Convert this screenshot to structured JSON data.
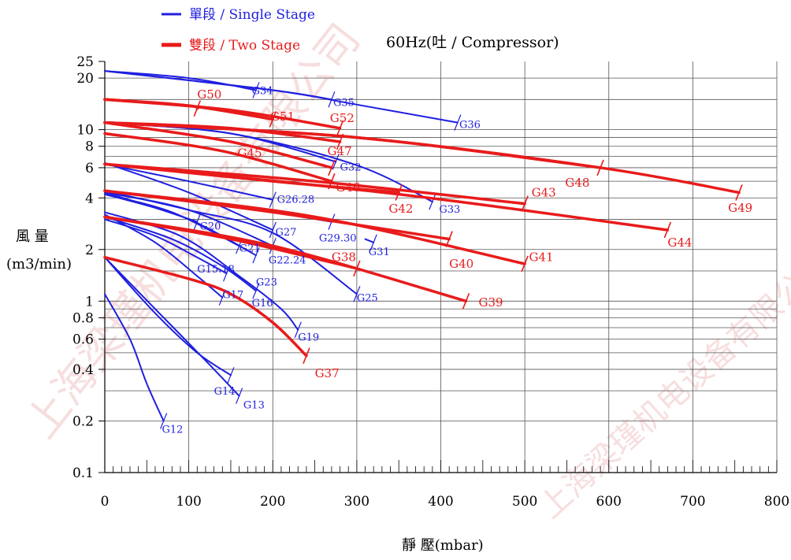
{
  "chart_data": {
    "type": "line",
    "title": "60Hz(吐 / Compressor)",
    "xlabel": "靜 壓(mbar)",
    "ylabel": "風 量\n(m3/min)",
    "y_scale": "log",
    "xlim": [
      0,
      800
    ],
    "ylim": [
      0.1,
      25
    ],
    "x_ticks": [
      0,
      100,
      200,
      300,
      400,
      500,
      600,
      700,
      800
    ],
    "y_ticks": [
      25,
      20,
      10,
      8,
      6,
      4,
      2,
      1,
      0.8,
      0.6,
      0.4,
      0.2,
      0.1
    ],
    "legend": [
      {
        "label": "單段 / Single Stage",
        "color": "#1f1fe0"
      },
      {
        "label": "雙段 / Two Stage",
        "color": "#e81b1b"
      }
    ],
    "legend_position": "top-left",
    "series": [
      {
        "name": "G12",
        "stage": "single",
        "points": [
          [
            0,
            1.1
          ],
          [
            30,
            0.6
          ],
          [
            50,
            0.33
          ],
          [
            70,
            0.2
          ]
        ]
      },
      {
        "name": "G13",
        "stage": "single",
        "points": [
          [
            0,
            1.8
          ],
          [
            60,
            0.9
          ],
          [
            120,
            0.45
          ],
          [
            160,
            0.28
          ]
        ]
      },
      {
        "name": "G14",
        "stage": "single",
        "points": [
          [
            0,
            1.8
          ],
          [
            60,
            0.85
          ],
          [
            110,
            0.5
          ],
          [
            150,
            0.37
          ]
        ]
      },
      {
        "name": "G15.18",
        "stage": "single",
        "points": [
          [
            0,
            3.0
          ],
          [
            60,
            2.4
          ],
          [
            110,
            1.8
          ],
          [
            145,
            1.45
          ]
        ]
      },
      {
        "name": "G16",
        "stage": "single",
        "points": [
          [
            0,
            3.1
          ],
          [
            80,
            2.3
          ],
          [
            140,
            1.6
          ],
          [
            180,
            1.15
          ]
        ]
      },
      {
        "name": "G17",
        "stage": "single",
        "points": [
          [
            0,
            3.2
          ],
          [
            60,
            2.2
          ],
          [
            110,
            1.4
          ],
          [
            140,
            1.05
          ]
        ]
      },
      {
        "name": "G19",
        "stage": "single",
        "points": [
          [
            0,
            3.3
          ],
          [
            90,
            2.4
          ],
          [
            160,
            1.4
          ],
          [
            210,
            0.9
          ],
          [
            230,
            0.68
          ]
        ]
      },
      {
        "name": "G20",
        "stage": "single",
        "points": [
          [
            0,
            4.2
          ],
          [
            60,
            3.5
          ],
          [
            110,
            2.9
          ]
        ]
      },
      {
        "name": "G21",
        "stage": "single",
        "points": [
          [
            0,
            4.2
          ],
          [
            80,
            3.3
          ],
          [
            160,
            2.1
          ]
        ]
      },
      {
        "name": "G22.24",
        "stage": "single",
        "points": [
          [
            0,
            4.3
          ],
          [
            100,
            3.4
          ],
          [
            200,
            2.1
          ]
        ]
      },
      {
        "name": "G23",
        "stage": "single",
        "points": [
          [
            0,
            4.3
          ],
          [
            100,
            3.0
          ],
          [
            180,
            1.85
          ]
        ]
      },
      {
        "name": "G25",
        "stage": "single",
        "points": [
          [
            0,
            4.4
          ],
          [
            100,
            3.4
          ],
          [
            200,
            2.5
          ],
          [
            300,
            1.1
          ]
        ]
      },
      {
        "name": "G26.28",
        "stage": "single",
        "points": [
          [
            0,
            6.3
          ],
          [
            100,
            5.0
          ],
          [
            200,
            3.9
          ]
        ]
      },
      {
        "name": "G27",
        "stage": "single",
        "points": [
          [
            0,
            6.4
          ],
          [
            100,
            4.3
          ],
          [
            200,
            2.6
          ]
        ]
      },
      {
        "name": "G29.30",
        "stage": "single",
        "points": [
          [
            0,
            4.4
          ],
          [
            150,
            3.6
          ],
          [
            270,
            2.9
          ]
        ]
      },
      {
        "name": "G31",
        "stage": "single",
        "points": [
          [
            310,
            2.3
          ],
          [
            320,
            2.2
          ]
        ]
      },
      {
        "name": "G32",
        "stage": "single",
        "points": [
          [
            0,
            11.0
          ],
          [
            150,
            9.5
          ],
          [
            275,
            6.5
          ]
        ]
      },
      {
        "name": "G33",
        "stage": "single",
        "points": [
          [
            0,
            11.0
          ],
          [
            150,
            9.5
          ],
          [
            300,
            6.2
          ],
          [
            390,
            3.8
          ]
        ]
      },
      {
        "name": "G34",
        "stage": "single",
        "points": [
          [
            0,
            22.0
          ],
          [
            100,
            20.0
          ],
          [
            180,
            17.0
          ]
        ]
      },
      {
        "name": "G35",
        "stage": "single",
        "points": [
          [
            0,
            22.0
          ],
          [
            200,
            17.0
          ],
          [
            270,
            15.0
          ]
        ]
      },
      {
        "name": "G36",
        "stage": "single",
        "points": [
          [
            0,
            22.0
          ],
          [
            200,
            17.0
          ],
          [
            300,
            14.0
          ],
          [
            420,
            11.0
          ]
        ]
      },
      {
        "name": "G37",
        "stage": "two",
        "points": [
          [
            0,
            1.8
          ],
          [
            100,
            1.35
          ],
          [
            150,
            1.1
          ],
          [
            200,
            0.75
          ],
          [
            240,
            0.48
          ]
        ]
      },
      {
        "name": "G38",
        "stage": "two",
        "points": [
          [
            0,
            3.1
          ],
          [
            150,
            2.3
          ],
          [
            300,
            1.55
          ]
        ]
      },
      {
        "name": "G39",
        "stage": "two",
        "points": [
          [
            0,
            3.1
          ],
          [
            200,
            2.1
          ],
          [
            430,
            1.0
          ]
        ]
      },
      {
        "name": "G40",
        "stage": "two",
        "points": [
          [
            0,
            4.4
          ],
          [
            200,
            3.3
          ],
          [
            410,
            2.3
          ]
        ]
      },
      {
        "name": "G41",
        "stage": "two",
        "points": [
          [
            0,
            4.4
          ],
          [
            250,
            3.1
          ],
          [
            500,
            1.65
          ]
        ]
      },
      {
        "name": "G42",
        "stage": "two",
        "points": [
          [
            0,
            6.3
          ],
          [
            200,
            5.0
          ],
          [
            350,
            4.3
          ]
        ]
      },
      {
        "name": "G43",
        "stage": "two",
        "points": [
          [
            0,
            6.3
          ],
          [
            250,
            5.0
          ],
          [
            500,
            3.7
          ]
        ]
      },
      {
        "name": "G44",
        "stage": "two",
        "points": [
          [
            0,
            6.3
          ],
          [
            350,
            4.2
          ],
          [
            670,
            2.6
          ]
        ]
      },
      {
        "name": "G45",
        "stage": "two",
        "points": [
          [
            0,
            9.5
          ],
          [
            140,
            7.5
          ],
          [
            270,
            5.0
          ]
        ]
      },
      {
        "name": "G46",
        "stage": "two",
        "points": [
          [
            0,
            11.0
          ],
          [
            150,
            8.5
          ],
          [
            270,
            6.0
          ]
        ]
      },
      {
        "name": "G47",
        "stage": "two",
        "points": [
          [
            0,
            11.0
          ],
          [
            150,
            10.2
          ],
          [
            280,
            8.5
          ]
        ]
      },
      {
        "name": "G48",
        "stage": "two",
        "points": [
          [
            0,
            11.0
          ],
          [
            300,
            9.0
          ],
          [
            590,
            6.0
          ]
        ]
      },
      {
        "name": "G49",
        "stage": "two",
        "points": [
          [
            0,
            11.0
          ],
          [
            300,
            9.0
          ],
          [
            590,
            6.0
          ],
          [
            755,
            4.3
          ]
        ]
      },
      {
        "name": "G50",
        "stage": "two",
        "points": [
          [
            0,
            15.0
          ],
          [
            100,
            13.8
          ],
          [
            110,
            13.3
          ]
        ]
      },
      {
        "name": "G51",
        "stage": "two",
        "points": [
          [
            0,
            15.0
          ],
          [
            100,
            13.8
          ],
          [
            200,
            11.5
          ]
        ]
      },
      {
        "name": "G52",
        "stage": "two",
        "points": [
          [
            0,
            15.0
          ],
          [
            150,
            13.0
          ],
          [
            280,
            10.2
          ]
        ]
      }
    ],
    "labels": [
      {
        "text": "G12",
        "x": 68,
        "y": 0.18,
        "stage": "single"
      },
      {
        "text": "G13",
        "x": 165,
        "y": 0.25,
        "stage": "single"
      },
      {
        "text": "G14",
        "x": 130,
        "y": 0.3,
        "stage": "single"
      },
      {
        "text": "G15.18",
        "x": 110,
        "y": 1.55,
        "stage": "single"
      },
      {
        "text": "G16",
        "x": 175,
        "y": 0.98,
        "stage": "single"
      },
      {
        "text": "G17",
        "x": 140,
        "y": 1.1,
        "stage": "single"
      },
      {
        "text": "G19",
        "x": 230,
        "y": 0.62,
        "stage": "single"
      },
      {
        "text": "G20",
        "x": 113,
        "y": 2.75,
        "stage": "single"
      },
      {
        "text": "G21",
        "x": 160,
        "y": 2.05,
        "stage": "single"
      },
      {
        "text": "G22.24",
        "x": 195,
        "y": 1.75,
        "stage": "single"
      },
      {
        "text": "G23",
        "x": 180,
        "y": 1.3,
        "stage": "single"
      },
      {
        "text": "G25",
        "x": 300,
        "y": 1.05,
        "stage": "single"
      },
      {
        "text": "G26.28",
        "x": 205,
        "y": 3.95,
        "stage": "single"
      },
      {
        "text": "G27",
        "x": 203,
        "y": 2.55,
        "stage": "single"
      },
      {
        "text": "G29.30",
        "x": 255,
        "y": 2.35,
        "stage": "single"
      },
      {
        "text": "G31",
        "x": 314,
        "y": 1.95,
        "stage": "single"
      },
      {
        "text": "G32",
        "x": 280,
        "y": 6.1,
        "stage": "single"
      },
      {
        "text": "G33",
        "x": 398,
        "y": 3.45,
        "stage": "single"
      },
      {
        "text": "G34",
        "x": 175,
        "y": 17.0,
        "stage": "single"
      },
      {
        "text": "G35",
        "x": 272,
        "y": 14.5,
        "stage": "single"
      },
      {
        "text": "G36",
        "x": 422,
        "y": 10.8,
        "stage": "single"
      },
      {
        "text": "G37",
        "x": 250,
        "y": 0.38,
        "stage": "two"
      },
      {
        "text": "G38",
        "x": 270,
        "y": 1.8,
        "stage": "two"
      },
      {
        "text": "G39",
        "x": 445,
        "y": 0.98,
        "stage": "two"
      },
      {
        "text": "G40",
        "x": 410,
        "y": 1.65,
        "stage": "two"
      },
      {
        "text": "G41",
        "x": 505,
        "y": 1.8,
        "stage": "two"
      },
      {
        "text": "G42",
        "x": 338,
        "y": 3.45,
        "stage": "two"
      },
      {
        "text": "G43",
        "x": 508,
        "y": 4.3,
        "stage": "two"
      },
      {
        "text": "G44",
        "x": 670,
        "y": 2.2,
        "stage": "two"
      },
      {
        "text": "G45",
        "x": 158,
        "y": 7.3,
        "stage": "two"
      },
      {
        "text": "G46",
        "x": 275,
        "y": 4.6,
        "stage": "two"
      },
      {
        "text": "G47",
        "x": 265,
        "y": 7.5,
        "stage": "two"
      },
      {
        "text": "G48",
        "x": 548,
        "y": 4.9,
        "stage": "two"
      },
      {
        "text": "G49",
        "x": 742,
        "y": 3.5,
        "stage": "two"
      },
      {
        "text": "G50",
        "x": 110,
        "y": 16.0,
        "stage": "two"
      },
      {
        "text": "G51",
        "x": 197,
        "y": 11.9,
        "stage": "two"
      },
      {
        "text": "G52",
        "x": 268,
        "y": 11.7,
        "stage": "two"
      }
    ],
    "grid": true,
    "colors": {
      "single": "#1f1fe0",
      "two": "#e81b1b"
    }
  },
  "watermark": "上海梁瑾机电设备有限公司"
}
